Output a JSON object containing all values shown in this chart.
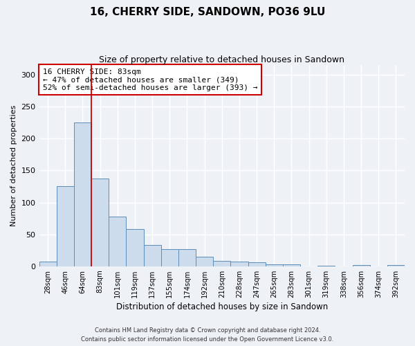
{
  "title": "16, CHERRY SIDE, SANDOWN, PO36 9LU",
  "subtitle": "Size of property relative to detached houses in Sandown",
  "xlabel": "Distribution of detached houses by size in Sandown",
  "ylabel": "Number of detached properties",
  "bar_labels": [
    "28sqm",
    "46sqm",
    "64sqm",
    "83sqm",
    "101sqm",
    "119sqm",
    "137sqm",
    "155sqm",
    "174sqm",
    "192sqm",
    "210sqm",
    "228sqm",
    "247sqm",
    "265sqm",
    "283sqm",
    "301sqm",
    "319sqm",
    "338sqm",
    "356sqm",
    "374sqm",
    "392sqm"
  ],
  "bar_values": [
    7,
    125,
    225,
    137,
    78,
    58,
    33,
    27,
    27,
    15,
    9,
    7,
    6,
    3,
    3,
    0,
    1,
    0,
    2,
    0,
    2
  ],
  "bar_color": "#cddcec",
  "bar_edge_color": "#5b8db8",
  "annotation_title": "16 CHERRY SIDE: 83sqm",
  "annotation_line1": "← 47% of detached houses are smaller (349)",
  "annotation_line2": "52% of semi-detached houses are larger (393) →",
  "marker_index": 2,
  "marker_color": "#cc0000",
  "annotation_box_color": "#ffffff",
  "annotation_box_edge": "#cc0000",
  "ylim": [
    0,
    315
  ],
  "yticks": [
    0,
    50,
    100,
    150,
    200,
    250,
    300
  ],
  "footer1": "Contains HM Land Registry data © Crown copyright and database right 2024.",
  "footer2": "Contains public sector information licensed under the Open Government Licence v3.0.",
  "bg_color": "#eef2f7",
  "grid_color": "#ffffff"
}
